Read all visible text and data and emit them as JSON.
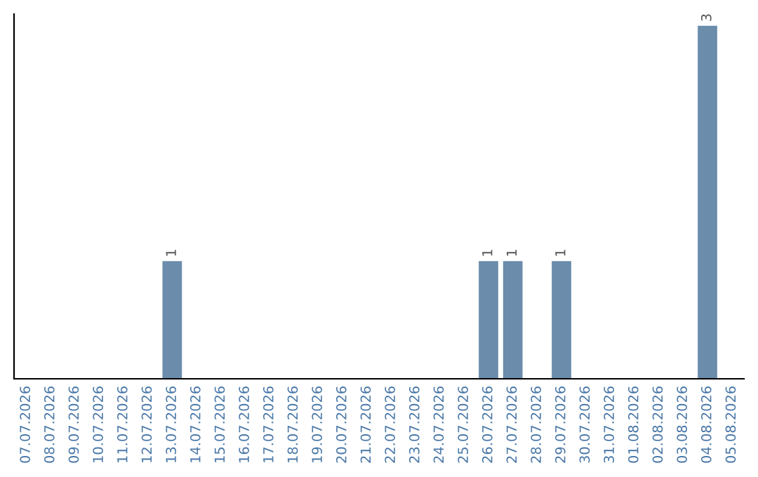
{
  "chart_data": {
    "type": "bar",
    "categories": [
      "07.07.2026",
      "08.07.2026",
      "09.07.2026",
      "10.07.2026",
      "11.07.2026",
      "12.07.2026",
      "13.07.2026",
      "14.07.2026",
      "15.07.2026",
      "16.07.2026",
      "17.07.2026",
      "18.07.2026",
      "19.07.2026",
      "20.07.2026",
      "21.07.2026",
      "22.07.2026",
      "23.07.2026",
      "24.07.2026",
      "25.07.2026",
      "26.07.2026",
      "27.07.2026",
      "28.07.2026",
      "29.07.2026",
      "30.07.2026",
      "31.07.2026",
      "01.08.2026",
      "02.08.2026",
      "03.08.2026",
      "04.08.2026",
      "05.08.2026"
    ],
    "values": [
      0,
      0,
      0,
      0,
      0,
      0,
      1,
      0,
      0,
      0,
      0,
      0,
      0,
      0,
      0,
      0,
      0,
      0,
      0,
      1,
      1,
      0,
      1,
      0,
      0,
      0,
      0,
      0,
      3,
      0
    ],
    "value_labels": [
      null,
      null,
      null,
      null,
      null,
      null,
      "1",
      null,
      null,
      null,
      null,
      null,
      null,
      null,
      null,
      null,
      null,
      null,
      null,
      "1",
      "1",
      null,
      "1",
      null,
      null,
      null,
      null,
      null,
      "3",
      null
    ],
    "color": "#6b8cab",
    "ylim": [
      0,
      3.1
    ],
    "tick_labels": "x",
    "grid": false,
    "legend": false
  }
}
